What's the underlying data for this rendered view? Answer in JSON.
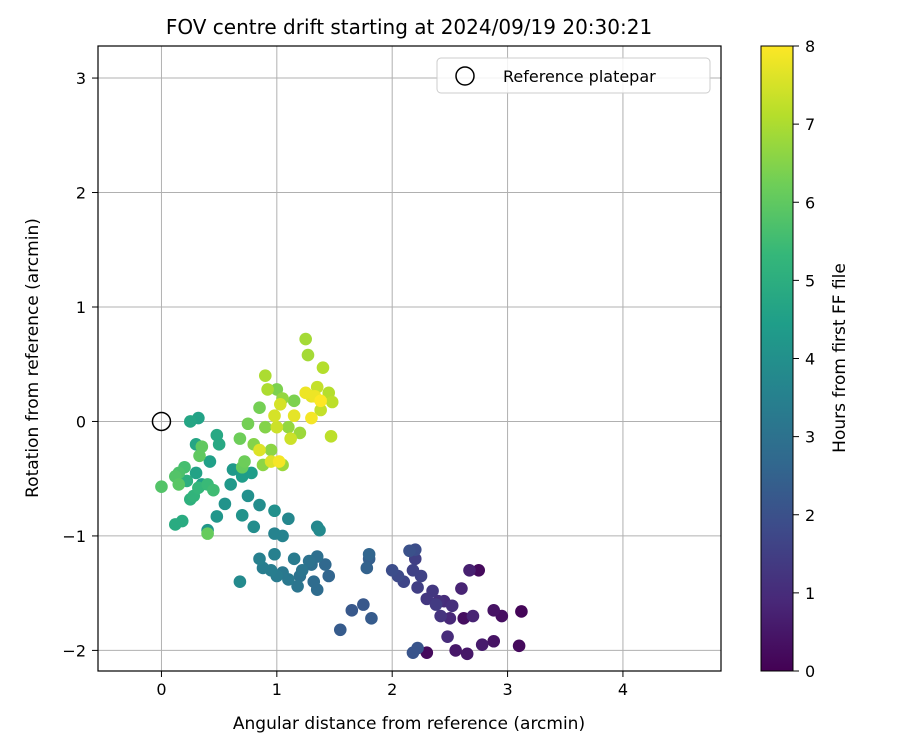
{
  "chart_data": {
    "type": "scatter",
    "title": "FOV centre drift starting at 2024/09/19 20:30:21",
    "xlabel": "Angular distance from reference (arcmin)",
    "ylabel": "Rotation from reference (arcmin)",
    "xlim": [
      -0.55,
      4.85
    ],
    "ylim": [
      -2.18,
      3.28
    ],
    "xticks": [
      "0",
      "1",
      "2",
      "3",
      "4"
    ],
    "yticks": [
      "−2",
      "−1",
      "0",
      "1",
      "2",
      "3"
    ],
    "grid": true,
    "legend": {
      "position": "top-right",
      "entries": [
        "Reference platepar"
      ]
    },
    "reference_point": {
      "x": 0,
      "y": 0
    },
    "colorbar": {
      "label": "Hours from first FF file",
      "range": [
        0,
        8
      ],
      "ticks": [
        "0",
        "1",
        "2",
        "3",
        "4",
        "5",
        "6",
        "7",
        "8"
      ],
      "colormap": "viridis",
      "colors": [
        "#440154",
        "#482878",
        "#3e4989",
        "#31688e",
        "#26828e",
        "#1f9e89",
        "#35b779",
        "#6ece58",
        "#b5de2b",
        "#fde725"
      ]
    },
    "points": [
      {
        "x": 3.12,
        "y": -1.66,
        "h": 0.1
      },
      {
        "x": 3.1,
        "y": -1.96,
        "h": 0.2
      },
      {
        "x": 2.75,
        "y": -1.3,
        "h": 0.2
      },
      {
        "x": 2.3,
        "y": -2.02,
        "h": 0.2
      },
      {
        "x": 2.62,
        "y": -1.72,
        "h": 0.3
      },
      {
        "x": 2.95,
        "y": -1.7,
        "h": 0.3
      },
      {
        "x": 2.88,
        "y": -1.65,
        "h": 0.4
      },
      {
        "x": 2.88,
        "y": -1.92,
        "h": 0.4
      },
      {
        "x": 2.65,
        "y": -2.03,
        "h": 0.5
      },
      {
        "x": 2.55,
        "y": -2.0,
        "h": 0.5
      },
      {
        "x": 2.78,
        "y": -1.95,
        "h": 0.6
      },
      {
        "x": 2.67,
        "y": -1.3,
        "h": 0.7
      },
      {
        "x": 2.6,
        "y": -1.46,
        "h": 0.8
      },
      {
        "x": 2.7,
        "y": -1.7,
        "h": 0.8
      },
      {
        "x": 2.5,
        "y": -1.72,
        "h": 0.9
      },
      {
        "x": 2.48,
        "y": -1.88,
        "h": 1.0
      },
      {
        "x": 2.45,
        "y": -1.57,
        "h": 1.0
      },
      {
        "x": 2.52,
        "y": -1.61,
        "h": 1.1
      },
      {
        "x": 2.4,
        "y": -1.57,
        "h": 1.1
      },
      {
        "x": 2.42,
        "y": -1.7,
        "h": 1.2
      },
      {
        "x": 2.35,
        "y": -1.48,
        "h": 1.3
      },
      {
        "x": 2.3,
        "y": -1.55,
        "h": 1.3
      },
      {
        "x": 2.38,
        "y": -1.6,
        "h": 1.4
      },
      {
        "x": 2.22,
        "y": -1.45,
        "h": 1.5
      },
      {
        "x": 2.2,
        "y": -1.2,
        "h": 1.5
      },
      {
        "x": 2.25,
        "y": -1.35,
        "h": 1.6
      },
      {
        "x": 2.18,
        "y": -1.3,
        "h": 1.6
      },
      {
        "x": 2.1,
        "y": -1.4,
        "h": 1.7
      },
      {
        "x": 2.05,
        "y": -1.35,
        "h": 1.8
      },
      {
        "x": 2.0,
        "y": -1.3,
        "h": 1.9
      },
      {
        "x": 2.2,
        "y": -1.12,
        "h": 1.9
      },
      {
        "x": 2.15,
        "y": -1.13,
        "h": 2.0
      },
      {
        "x": 2.18,
        "y": -2.02,
        "h": 2.1
      },
      {
        "x": 2.22,
        "y": -1.98,
        "h": 2.1
      },
      {
        "x": 1.65,
        "y": -1.65,
        "h": 2.2
      },
      {
        "x": 1.75,
        "y": -1.6,
        "h": 2.2
      },
      {
        "x": 1.82,
        "y": -1.72,
        "h": 2.3
      },
      {
        "x": 1.55,
        "y": -1.82,
        "h": 2.3
      },
      {
        "x": 1.8,
        "y": -1.2,
        "h": 2.4
      },
      {
        "x": 1.78,
        "y": -1.28,
        "h": 2.5
      },
      {
        "x": 1.8,
        "y": -1.16,
        "h": 2.6
      },
      {
        "x": 1.45,
        "y": -1.35,
        "h": 2.6
      },
      {
        "x": 1.42,
        "y": -1.25,
        "h": 2.7
      },
      {
        "x": 1.35,
        "y": -1.47,
        "h": 2.8
      },
      {
        "x": 1.32,
        "y": -1.4,
        "h": 2.8
      },
      {
        "x": 1.3,
        "y": -1.25,
        "h": 2.9
      },
      {
        "x": 1.35,
        "y": -1.18,
        "h": 2.9
      },
      {
        "x": 1.28,
        "y": -1.22,
        "h": 3.0
      },
      {
        "x": 1.2,
        "y": -1.35,
        "h": 3.0
      },
      {
        "x": 1.18,
        "y": -1.44,
        "h": 3.1
      },
      {
        "x": 1.22,
        "y": -1.3,
        "h": 3.1
      },
      {
        "x": 1.1,
        "y": -1.38,
        "h": 3.2
      },
      {
        "x": 1.05,
        "y": -1.32,
        "h": 3.2
      },
      {
        "x": 1.15,
        "y": -1.2,
        "h": 3.3
      },
      {
        "x": 1.0,
        "y": -1.35,
        "h": 3.3
      },
      {
        "x": 0.95,
        "y": -1.3,
        "h": 3.4
      },
      {
        "x": 0.88,
        "y": -1.28,
        "h": 3.4
      },
      {
        "x": 0.85,
        "y": -1.2,
        "h": 3.5
      },
      {
        "x": 0.98,
        "y": -1.16,
        "h": 3.5
      },
      {
        "x": 1.05,
        "y": -1.0,
        "h": 3.6
      },
      {
        "x": 0.98,
        "y": -0.98,
        "h": 3.6
      },
      {
        "x": 1.1,
        "y": -0.85,
        "h": 3.7
      },
      {
        "x": 1.35,
        "y": -0.92,
        "h": 3.7
      },
      {
        "x": 1.37,
        "y": -0.95,
        "h": 3.8
      },
      {
        "x": 0.68,
        "y": -1.4,
        "h": 3.8
      },
      {
        "x": 0.8,
        "y": -0.92,
        "h": 3.9
      },
      {
        "x": 0.85,
        "y": -0.73,
        "h": 3.9
      },
      {
        "x": 0.98,
        "y": -0.78,
        "h": 4.0
      },
      {
        "x": 0.75,
        "y": -0.65,
        "h": 4.0
      },
      {
        "x": 0.7,
        "y": -0.82,
        "h": 4.1
      },
      {
        "x": 0.55,
        "y": -0.72,
        "h": 4.1
      },
      {
        "x": 0.48,
        "y": -0.83,
        "h": 4.2
      },
      {
        "x": 0.4,
        "y": -0.95,
        "h": 4.2
      },
      {
        "x": 0.6,
        "y": -0.55,
        "h": 4.3
      },
      {
        "x": 0.62,
        "y": -0.42,
        "h": 4.3
      },
      {
        "x": 0.7,
        "y": -0.48,
        "h": 4.4
      },
      {
        "x": 0.78,
        "y": -0.45,
        "h": 4.4
      },
      {
        "x": 0.35,
        "y": -0.55,
        "h": 4.5
      },
      {
        "x": 0.42,
        "y": -0.35,
        "h": 4.5
      },
      {
        "x": 0.3,
        "y": -0.45,
        "h": 4.6
      },
      {
        "x": 0.32,
        "y": 0.03,
        "h": 4.6
      },
      {
        "x": 0.25,
        "y": 0.0,
        "h": 4.7
      },
      {
        "x": 0.3,
        "y": -0.2,
        "h": 4.7
      },
      {
        "x": 0.5,
        "y": -0.2,
        "h": 4.8
      },
      {
        "x": 0.48,
        "y": -0.12,
        "h": 4.8
      },
      {
        "x": 0.12,
        "y": -0.9,
        "h": 4.9
      },
      {
        "x": 0.18,
        "y": -0.87,
        "h": 4.9
      },
      {
        "x": 0.22,
        "y": -0.52,
        "h": 5.0
      },
      {
        "x": 0.25,
        "y": -0.68,
        "h": 5.1
      },
      {
        "x": 0.28,
        "y": -0.65,
        "h": 5.2
      },
      {
        "x": 0.32,
        "y": -0.58,
        "h": 5.3
      },
      {
        "x": 0.4,
        "y": -0.55,
        "h": 5.4
      },
      {
        "x": 0.45,
        "y": -0.6,
        "h": 5.5
      },
      {
        "x": 0.2,
        "y": -0.4,
        "h": 5.6
      },
      {
        "x": 0.15,
        "y": -0.45,
        "h": 5.7
      },
      {
        "x": 0.12,
        "y": -0.48,
        "h": 5.8
      },
      {
        "x": 0.0,
        "y": -0.57,
        "h": 5.8
      },
      {
        "x": 0.15,
        "y": -0.55,
        "h": 5.9
      },
      {
        "x": 0.35,
        "y": -0.22,
        "h": 6.0
      },
      {
        "x": 0.33,
        "y": -0.3,
        "h": 6.0
      },
      {
        "x": 0.4,
        "y": -0.98,
        "h": 6.1
      },
      {
        "x": 0.7,
        "y": -0.4,
        "h": 6.1
      },
      {
        "x": 0.68,
        "y": -0.15,
        "h": 6.2
      },
      {
        "x": 0.72,
        "y": -0.35,
        "h": 6.2
      },
      {
        "x": 0.85,
        "y": 0.12,
        "h": 6.3
      },
      {
        "x": 0.75,
        "y": -0.02,
        "h": 6.3
      },
      {
        "x": 1.0,
        "y": 0.28,
        "h": 6.4
      },
      {
        "x": 1.15,
        "y": 0.18,
        "h": 6.4
      },
      {
        "x": 0.9,
        "y": -0.05,
        "h": 6.5
      },
      {
        "x": 0.8,
        "y": -0.2,
        "h": 6.5
      },
      {
        "x": 0.88,
        "y": -0.38,
        "h": 6.6
      },
      {
        "x": 0.95,
        "y": -0.25,
        "h": 6.6
      },
      {
        "x": 1.05,
        "y": 0.2,
        "h": 6.7
      },
      {
        "x": 1.1,
        "y": -0.05,
        "h": 6.7
      },
      {
        "x": 1.05,
        "y": -0.38,
        "h": 6.8
      },
      {
        "x": 1.2,
        "y": -0.1,
        "h": 6.8
      },
      {
        "x": 1.25,
        "y": 0.72,
        "h": 6.9
      },
      {
        "x": 1.27,
        "y": 0.58,
        "h": 6.9
      },
      {
        "x": 0.9,
        "y": 0.4,
        "h": 7.0
      },
      {
        "x": 0.92,
        "y": 0.28,
        "h": 7.0
      },
      {
        "x": 1.4,
        "y": 0.47,
        "h": 7.1
      },
      {
        "x": 1.45,
        "y": 0.25,
        "h": 7.1
      },
      {
        "x": 1.47,
        "y": -0.13,
        "h": 7.2
      },
      {
        "x": 1.48,
        "y": 0.17,
        "h": 7.2
      },
      {
        "x": 1.35,
        "y": 0.3,
        "h": 7.3
      },
      {
        "x": 1.38,
        "y": 0.1,
        "h": 7.3
      },
      {
        "x": 1.12,
        "y": -0.15,
        "h": 7.4
      },
      {
        "x": 1.0,
        "y": -0.05,
        "h": 7.4
      },
      {
        "x": 0.98,
        "y": 0.05,
        "h": 7.5
      },
      {
        "x": 1.03,
        "y": 0.15,
        "h": 7.5
      },
      {
        "x": 0.85,
        "y": -0.25,
        "h": 7.6
      },
      {
        "x": 0.95,
        "y": -0.35,
        "h": 7.6
      },
      {
        "x": 1.15,
        "y": 0.05,
        "h": 7.7
      },
      {
        "x": 1.3,
        "y": 0.22,
        "h": 7.7
      },
      {
        "x": 1.25,
        "y": 0.25,
        "h": 7.8
      },
      {
        "x": 1.33,
        "y": 0.22,
        "h": 7.8
      },
      {
        "x": 1.3,
        "y": 0.03,
        "h": 7.9
      },
      {
        "x": 1.02,
        "y": -0.35,
        "h": 7.9
      },
      {
        "x": 1.38,
        "y": 0.18,
        "h": 8.0
      }
    ]
  }
}
